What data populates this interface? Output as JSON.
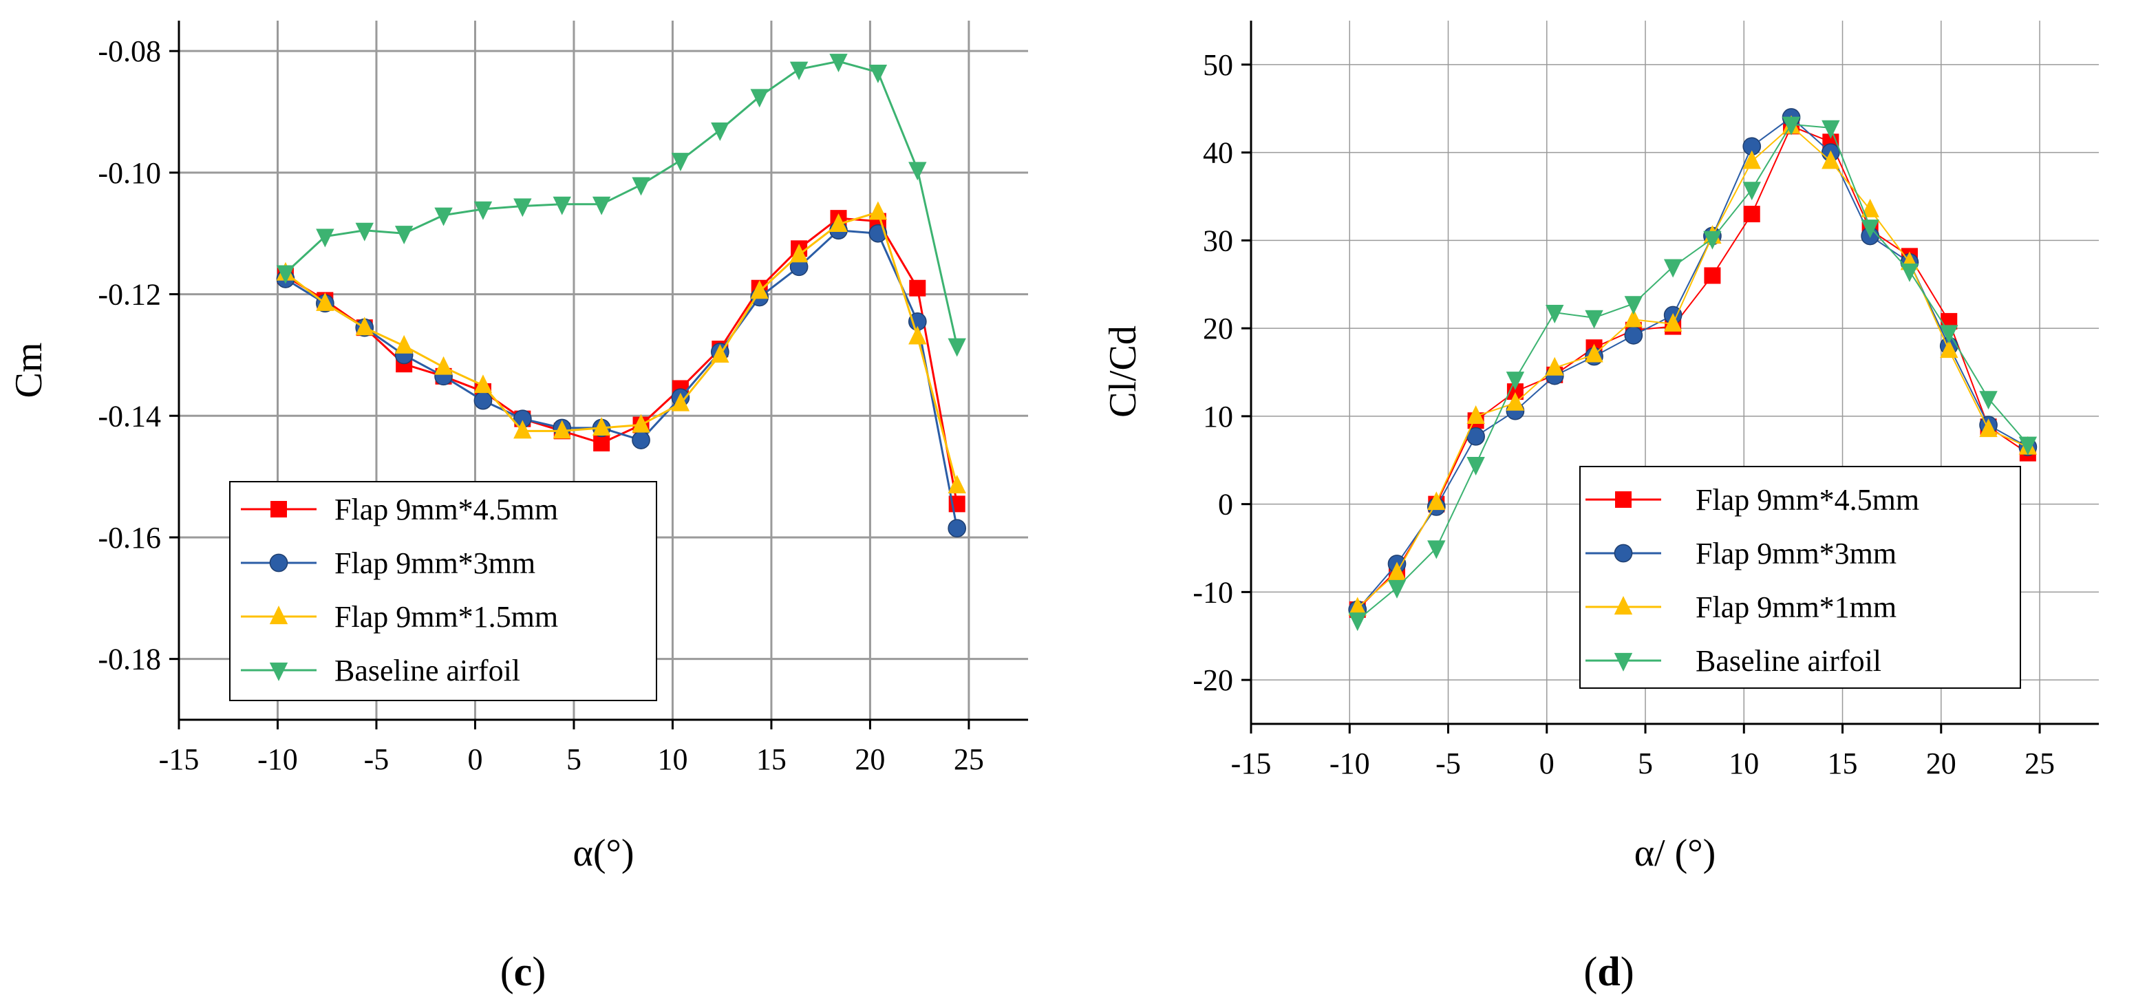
{
  "figure": {
    "captions": [
      {
        "open": "(",
        "letter": "c",
        "close": ")"
      },
      {
        "open": "(",
        "letter": "d",
        "close": ")"
      }
    ]
  },
  "chart_data": [
    {
      "id": "c",
      "type": "line",
      "title": "",
      "xlabel": "α(°)",
      "ylabel": "Cm",
      "xlim": [
        -15,
        28
      ],
      "ylim": [
        -0.19,
        -0.075
      ],
      "xticks": [
        -15,
        -10,
        -5,
        0,
        5,
        10,
        15,
        20,
        25
      ],
      "xtick_labels": [
        "-15",
        "-10",
        "-5",
        "0",
        "5",
        "10",
        "15",
        "20",
        "25"
      ],
      "yticks": [
        -0.18,
        -0.16,
        -0.14,
        -0.12,
        -0.1,
        -0.08
      ],
      "ytick_labels": [
        "-0.18",
        "-0.16",
        "-0.14",
        "-0.12",
        "-0.10",
        "-0.08"
      ],
      "grid": true,
      "legend_position": "bottom-left",
      "series": [
        {
          "name": "Flap 9mm*4.5mm",
          "color": "#FF0000",
          "marker": "square",
          "x": [
            -9.6,
            -7.6,
            -5.6,
            -3.6,
            -1.6,
            0.4,
            2.4,
            4.4,
            6.4,
            8.4,
            10.4,
            12.4,
            14.4,
            16.4,
            18.4,
            20.4,
            22.4,
            24.4
          ],
          "y": [
            -0.117,
            -0.121,
            -0.1255,
            -0.1315,
            -0.1335,
            -0.136,
            -0.1405,
            -0.1425,
            -0.1445,
            -0.1415,
            -0.1355,
            -0.129,
            -0.119,
            -0.1125,
            -0.1075,
            -0.108,
            -0.119,
            -0.1545
          ]
        },
        {
          "name": "Flap 9mm*3mm",
          "color": "#2B5DA6",
          "marker": "circle",
          "x": [
            -9.6,
            -7.6,
            -5.6,
            -3.6,
            -1.6,
            0.4,
            2.4,
            4.4,
            6.4,
            8.4,
            10.4,
            12.4,
            14.4,
            16.4,
            18.4,
            20.4,
            22.4,
            24.4
          ],
          "y": [
            -0.1175,
            -0.1215,
            -0.1255,
            -0.13,
            -0.1335,
            -0.1375,
            -0.1405,
            -0.142,
            -0.142,
            -0.144,
            -0.137,
            -0.1295,
            -0.1205,
            -0.1155,
            -0.1095,
            -0.11,
            -0.1245,
            -0.1585
          ]
        },
        {
          "name": "Flap 9mm*1.5mm",
          "color": "#FFC000",
          "marker": "triangle-up",
          "x": [
            -9.6,
            -7.6,
            -5.6,
            -3.6,
            -1.6,
            0.4,
            2.4,
            4.4,
            6.4,
            8.4,
            10.4,
            12.4,
            14.4,
            16.4,
            18.4,
            20.4,
            22.4,
            24.4
          ],
          "y": [
            -0.1165,
            -0.1215,
            -0.1255,
            -0.1285,
            -0.132,
            -0.135,
            -0.1425,
            -0.1425,
            -0.142,
            -0.1415,
            -0.138,
            -0.13,
            -0.1195,
            -0.1135,
            -0.1085,
            -0.1065,
            -0.127,
            -0.1515
          ]
        },
        {
          "name": "Baseline airfoil",
          "color": "#3CB371",
          "marker": "triangle-down",
          "x": [
            -9.6,
            -7.6,
            -5.6,
            -3.6,
            -1.6,
            0.4,
            2.4,
            4.4,
            6.4,
            8.4,
            10.4,
            12.4,
            14.4,
            16.4,
            18.4,
            20.4,
            22.4,
            24.4
          ],
          "y": [
            -0.1165,
            -0.1105,
            -0.1095,
            -0.11,
            -0.107,
            -0.106,
            -0.1055,
            -0.1052,
            -0.1052,
            -0.102,
            -0.098,
            -0.093,
            -0.0875,
            -0.083,
            -0.0817,
            -0.0835,
            -0.0995,
            -0.1285
          ]
        }
      ]
    },
    {
      "id": "d",
      "type": "line",
      "title": "",
      "xlabel": "α/ (°)",
      "ylabel": "Cl/Cd",
      "xlim": [
        -15,
        28
      ],
      "ylim": [
        -25,
        55
      ],
      "xticks": [
        -15,
        -10,
        -5,
        0,
        5,
        10,
        15,
        20,
        25
      ],
      "xtick_labels": [
        "-15",
        "-10",
        "-5",
        "0",
        "5",
        "10",
        "15",
        "20",
        "25"
      ],
      "yticks": [
        -20,
        -10,
        0,
        10,
        20,
        30,
        40,
        50
      ],
      "ytick_labels": [
        "-20",
        "-10",
        "0",
        "10",
        "20",
        "30",
        "40",
        "50"
      ],
      "grid": true,
      "legend_position": "bottom-right",
      "series": [
        {
          "name": "Flap 9mm*4.5mm",
          "color": "#FF0000",
          "marker": "square",
          "x": [
            -9.6,
            -7.6,
            -5.6,
            -3.6,
            -1.6,
            0.4,
            2.4,
            4.4,
            6.4,
            8.4,
            10.4,
            12.4,
            14.4,
            16.4,
            18.4,
            20.4,
            22.4,
            24.4
          ],
          "y": [
            -12.0,
            -7.5,
            0.0,
            9.5,
            12.8,
            14.7,
            17.8,
            19.8,
            20.2,
            26.0,
            33.0,
            43.0,
            41.2,
            31.2,
            28.2,
            20.8,
            8.8,
            5.8
          ]
        },
        {
          "name": "Flap 9mm*3mm",
          "color": "#2B5DA6",
          "marker": "circle",
          "x": [
            -9.6,
            -7.6,
            -5.6,
            -3.6,
            -1.6,
            0.4,
            2.4,
            4.4,
            6.4,
            8.4,
            10.4,
            12.4,
            14.4,
            16.4,
            18.4,
            20.4,
            22.4,
            24.4
          ],
          "y": [
            -12.0,
            -6.8,
            -0.3,
            7.7,
            10.6,
            14.6,
            16.8,
            19.2,
            21.5,
            30.5,
            40.7,
            44.0,
            40.0,
            30.5,
            27.5,
            18.0,
            9.0,
            6.5
          ]
        },
        {
          "name": "Flap 9mm*1mm",
          "color": "#FFC000",
          "marker": "triangle-up",
          "x": [
            -9.6,
            -7.6,
            -5.6,
            -3.6,
            -1.6,
            0.4,
            2.4,
            4.4,
            6.4,
            8.4,
            10.4,
            12.4,
            14.4,
            16.4,
            18.4,
            20.4,
            22.4,
            24.4
          ],
          "y": [
            -11.8,
            -7.8,
            0.2,
            10.0,
            11.5,
            15.5,
            17.0,
            21.0,
            20.5,
            30.5,
            39.0,
            43.0,
            39.0,
            33.5,
            27.5,
            17.5,
            8.5,
            6.5
          ]
        },
        {
          "name": "Baseline airfoil",
          "color": "#3CB371",
          "marker": "triangle-down",
          "x": [
            -9.6,
            -7.6,
            -5.6,
            -3.6,
            -1.6,
            0.4,
            2.4,
            4.4,
            6.4,
            8.4,
            10.4,
            12.4,
            14.4,
            16.4,
            18.4,
            20.4,
            22.4,
            24.4
          ],
          "y": [
            -13.2,
            -9.5,
            -5.0,
            4.5,
            14.2,
            21.8,
            21.2,
            22.8,
            27.0,
            30.2,
            35.8,
            43.2,
            42.8,
            31.5,
            26.5,
            19.5,
            12.0,
            6.8
          ]
        }
      ]
    }
  ]
}
